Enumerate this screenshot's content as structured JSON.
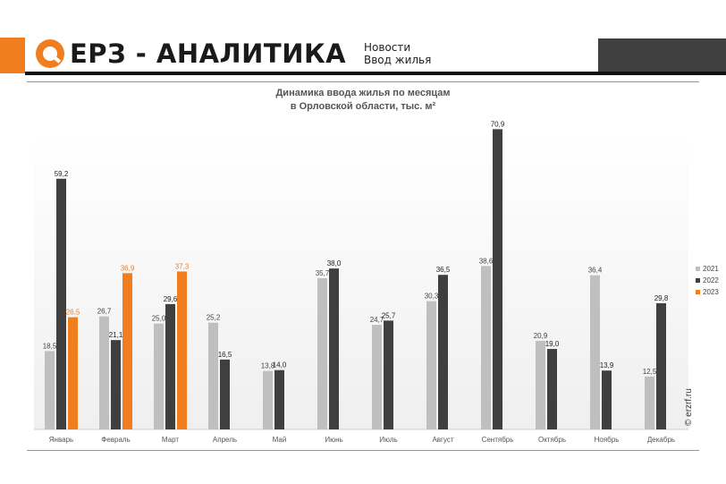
{
  "brand": {
    "logo_text": "ЕРЗ - АНАЛИТИКА",
    "section_line1": "Новости",
    "section_line2": "Ввод жилья",
    "accent": "#f07d1e"
  },
  "source": "© erzrf.ru",
  "chart_data": {
    "type": "bar",
    "title_line1": "Динамика ввода жилья по месяцам",
    "title_line2": "в Орловской области, тыс. м²",
    "categories": [
      "Январь",
      "Февраль",
      "Март",
      "Апрель",
      "Май",
      "Июнь",
      "Июль",
      "Август",
      "Сентябрь",
      "Октябрь",
      "Ноябрь",
      "Декабрь"
    ],
    "series": [
      {
        "name": "2021",
        "color": "#bfbfbf",
        "values": [
          18.5,
          26.7,
          25.0,
          25.2,
          13.8,
          35.7,
          24.7,
          30.3,
          38.6,
          20.9,
          36.4,
          12.5
        ]
      },
      {
        "name": "2022",
        "color": "#3f3f3f",
        "values": [
          59.2,
          21.1,
          29.6,
          16.5,
          14.0,
          38.0,
          25.7,
          36.5,
          70.9,
          19.0,
          13.9,
          29.8
        ]
      },
      {
        "name": "2023",
        "color": "#f07d1e",
        "values": [
          26.5,
          36.9,
          37.3,
          null,
          null,
          null,
          null,
          null,
          null,
          null,
          null,
          null
        ]
      }
    ],
    "label_colors": [
      "#444444",
      "#222222",
      "#f07d1e"
    ],
    "ylim": [
      0,
      75
    ],
    "legend_position": "right",
    "grid": false
  }
}
